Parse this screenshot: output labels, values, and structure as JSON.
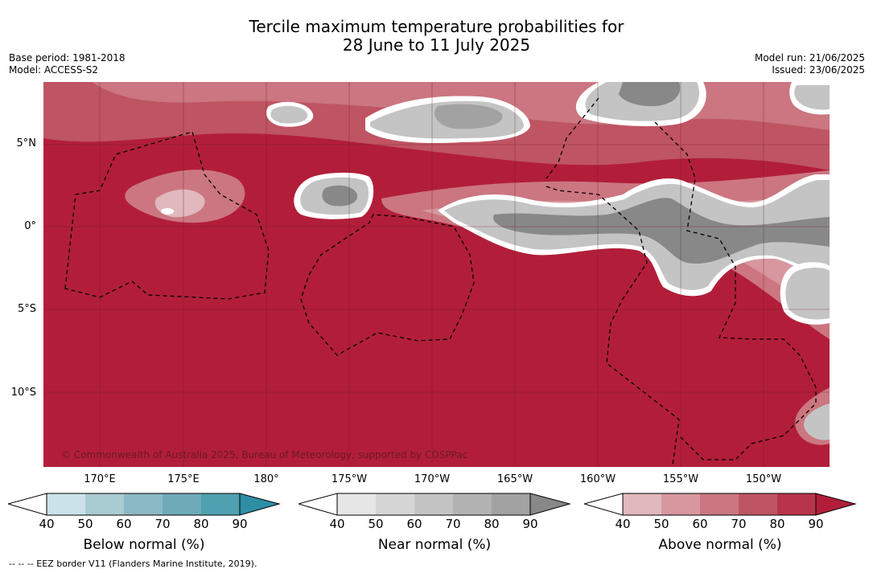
{
  "title_line1": "Tercile maximum temperature probabilities for",
  "title_line2": "28 June to 11 July 2025",
  "base_period": "Base period: 1981-2018",
  "model": "Model: ACCESS-S2",
  "model_run": "Model run: 21/06/2025",
  "issued": "Issued: 23/06/2025",
  "credit": "© Commonwealth of Australia 2025, Bureau of Meteorology, supported by COSPPac",
  "eez_note": "--  --  -- EEZ border V11 (Flanders Marine Institute, 2019).",
  "lat_labels": [
    "5°N",
    "0°",
    "5°S",
    "10°S"
  ],
  "lon_labels": [
    "170°E",
    "175°E",
    "180°",
    "175°W",
    "170°W",
    "165°W",
    "160°W",
    "155°W",
    "150°W"
  ],
  "colorbars": [
    {
      "label": "Below normal (%)",
      "ticks": [
        "40",
        "50",
        "60",
        "70",
        "80",
        "90"
      ],
      "colors": [
        "#ffffff",
        "#cbe2e8",
        "#a9cbd2",
        "#8bb9c4",
        "#6eaab8",
        "#4fa0b0",
        "#2e8fa4"
      ]
    },
    {
      "label": "Near normal (%)",
      "ticks": [
        "40",
        "50",
        "60",
        "70",
        "80",
        "90"
      ],
      "colors": [
        "#ffffff",
        "#e6e6e6",
        "#d5d5d5",
        "#c4c4c4",
        "#b2b2b2",
        "#a2a2a2",
        "#888888"
      ]
    },
    {
      "label": "Above normal (%)",
      "ticks": [
        "40",
        "50",
        "60",
        "70",
        "80",
        "90"
      ],
      "colors": [
        "#ffffff",
        "#e0b8be",
        "#d8979f",
        "#cb7680",
        "#bf5463",
        "#b8344a",
        "#b21e3a"
      ]
    }
  ]
}
